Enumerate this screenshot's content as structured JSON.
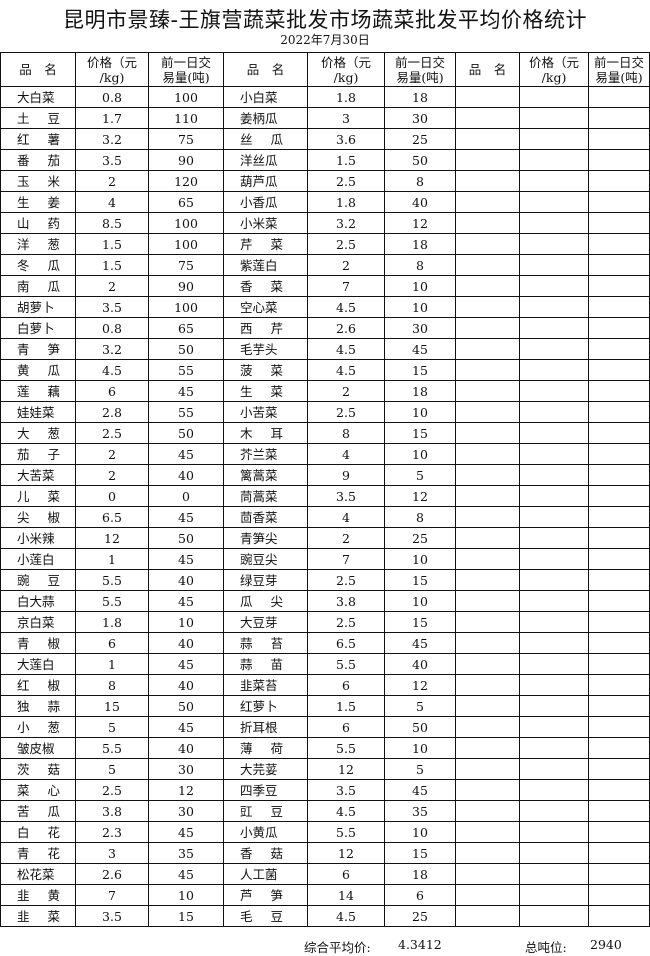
{
  "title": "昆明市景臻-王旗营蔬菜批发市场蔬菜批发平均价格统计",
  "date": "2022年7月30日",
  "headers": {
    "name": "品　名",
    "price_line1": "价格（元",
    "price_line2": "/kg)",
    "volume_line1": "前一日交",
    "volume_line2": "易量(吨)"
  },
  "rows": [
    [
      [
        "大白菜",
        "0.8",
        "100"
      ],
      [
        "小白菜",
        "1.8",
        "18"
      ]
    ],
    [
      [
        "土豆",
        "1.7",
        "110"
      ],
      [
        "姜柄瓜",
        "3",
        "30"
      ]
    ],
    [
      [
        "红薯",
        "3.2",
        "75"
      ],
      [
        "丝瓜",
        "3.6",
        "25"
      ]
    ],
    [
      [
        "番茄",
        "3.5",
        "90"
      ],
      [
        "洋丝瓜",
        "1.5",
        "50"
      ]
    ],
    [
      [
        "玉米",
        "2",
        "120"
      ],
      [
        "葫芦瓜",
        "2.5",
        "8"
      ]
    ],
    [
      [
        "生姜",
        "4",
        "65"
      ],
      [
        "小香瓜",
        "1.8",
        "40"
      ]
    ],
    [
      [
        "山药",
        "8.5",
        "100"
      ],
      [
        "小米菜",
        "3.2",
        "12"
      ]
    ],
    [
      [
        "洋葱",
        "1.5",
        "100"
      ],
      [
        "芹菜",
        "2.5",
        "18"
      ]
    ],
    [
      [
        "冬瓜",
        "1.5",
        "75"
      ],
      [
        "紫莲白",
        "2",
        "8"
      ]
    ],
    [
      [
        "南瓜",
        "2",
        "90"
      ],
      [
        "香菜",
        "7",
        "10"
      ]
    ],
    [
      [
        "胡萝卜",
        "3.5",
        "100"
      ],
      [
        "空心菜",
        "4.5",
        "10"
      ]
    ],
    [
      [
        "白萝卜",
        "0.8",
        "65"
      ],
      [
        "西芹",
        "2.6",
        "30"
      ]
    ],
    [
      [
        "青笋",
        "3.2",
        "50"
      ],
      [
        "毛芋头",
        "4.5",
        "45"
      ]
    ],
    [
      [
        "黄瓜",
        "4.5",
        "55"
      ],
      [
        "菠菜",
        "4.5",
        "15"
      ]
    ],
    [
      [
        "莲藕",
        "6",
        "45"
      ],
      [
        "生菜",
        "2",
        "18"
      ]
    ],
    [
      [
        "娃娃菜",
        "2.8",
        "55"
      ],
      [
        "小苦菜",
        "2.5",
        "10"
      ]
    ],
    [
      [
        "大葱",
        "2.5",
        "50"
      ],
      [
        "木耳",
        "8",
        "15"
      ]
    ],
    [
      [
        "茄子",
        "2",
        "45"
      ],
      [
        "芥兰菜",
        "4",
        "10"
      ]
    ],
    [
      [
        "大苦菜",
        "2",
        "40"
      ],
      [
        "篱蒿菜",
        "9",
        "5"
      ]
    ],
    [
      [
        "儿菜",
        "0",
        "0"
      ],
      [
        "茼蒿菜",
        "3.5",
        "12"
      ]
    ],
    [
      [
        "尖椒",
        "6.5",
        "45"
      ],
      [
        "茴香菜",
        "4",
        "8"
      ]
    ],
    [
      [
        "小米辣",
        "12",
        "50"
      ],
      [
        "青笋尖",
        "2",
        "25"
      ]
    ],
    [
      [
        "小莲白",
        "1",
        "45"
      ],
      [
        "豌豆尖",
        "7",
        "10"
      ]
    ],
    [
      [
        "豌豆",
        "5.5",
        "40"
      ],
      [
        "绿豆芽",
        "2.5",
        "15"
      ]
    ],
    [
      [
        "白大蒜",
        "5.5",
        "45"
      ],
      [
        "瓜尖",
        "3.8",
        "10"
      ]
    ],
    [
      [
        "京白菜",
        "1.8",
        "10"
      ],
      [
        "大豆芽",
        "2.5",
        "15"
      ]
    ],
    [
      [
        "青椒",
        "6",
        "40"
      ],
      [
        "蒜苔",
        "6.5",
        "45"
      ]
    ],
    [
      [
        "大莲白",
        "1",
        "45"
      ],
      [
        "蒜苗",
        "5.5",
        "40"
      ]
    ],
    [
      [
        "红椒",
        "8",
        "40"
      ],
      [
        "韭菜苔",
        "6",
        "12"
      ]
    ],
    [
      [
        "独蒜",
        "15",
        "50"
      ],
      [
        "红萝卜",
        "1.5",
        "5"
      ]
    ],
    [
      [
        "小葱",
        "5",
        "45"
      ],
      [
        "折耳根",
        "6",
        "50"
      ]
    ],
    [
      [
        "皱皮椒",
        "5.5",
        "40"
      ],
      [
        "薄荷",
        "5.5",
        "10"
      ]
    ],
    [
      [
        "茨菇",
        "5",
        "30"
      ],
      [
        "大芫荽",
        "12",
        "5"
      ]
    ],
    [
      [
        "菜心",
        "2.5",
        "12"
      ],
      [
        "四季豆",
        "3.5",
        "45"
      ]
    ],
    [
      [
        "苦瓜",
        "3.8",
        "30"
      ],
      [
        "豇豆",
        "4.5",
        "35"
      ]
    ],
    [
      [
        "白花",
        "2.3",
        "45"
      ],
      [
        "小黄瓜",
        "5.5",
        "10"
      ]
    ],
    [
      [
        "青花",
        "3",
        "35"
      ],
      [
        "香菇",
        "12",
        "15"
      ]
    ],
    [
      [
        "松花菜",
        "2.6",
        "45"
      ],
      [
        "人工菌",
        "6",
        "18"
      ]
    ],
    [
      [
        "韭黄",
        "7",
        "10"
      ],
      [
        "芦笋",
        "14",
        "6"
      ]
    ],
    [
      [
        "韭菜",
        "3.5",
        "15"
      ],
      [
        "毛豆",
        "4.5",
        "25"
      ]
    ]
  ],
  "footer": {
    "avg_label": "综合平均价:",
    "avg_value": "4.3412",
    "total_label": "总吨位:",
    "total_value": "2940"
  }
}
